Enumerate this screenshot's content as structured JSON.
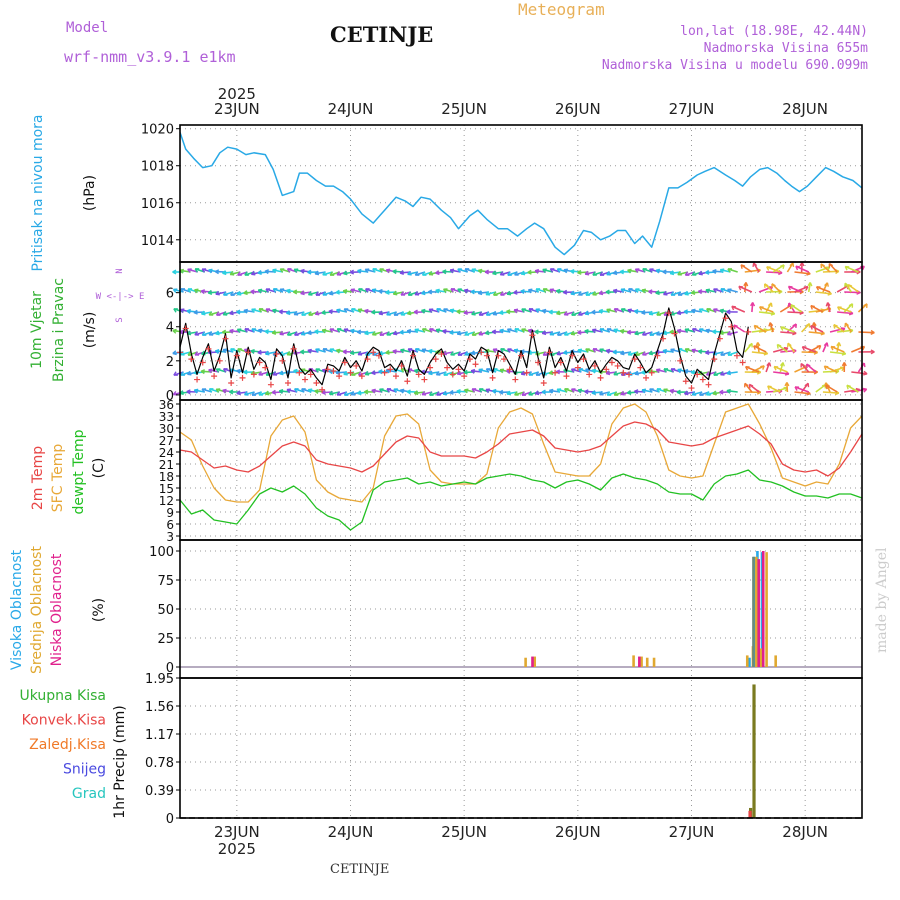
{
  "header": {
    "model_label": "Model",
    "model_name": "wrf-nmm_v3.9.1  e1km",
    "station": "CETINJE",
    "product": "Meteogram",
    "lonlat": "lon,lat (18.98E, 42.44N)",
    "altitude": "Nadmorska Visina 655m",
    "model_altitude": "Nadmorska Visina u modelu 690.099m"
  },
  "footer": {
    "station": "CETINJE",
    "watermark": "made by Angel"
  },
  "colors": {
    "pressure": "#29a9e6",
    "wind_label": "#33b033",
    "temp2m": "#e84646",
    "sfc": "#e8a838",
    "dewpt": "#22c022",
    "high_cloud": "#2aa9e8",
    "mid_cloud": "#e0a830",
    "low_cloud": "#e0208c",
    "precip_total": "#33b033",
    "precip_conv": "#e84646",
    "precip_frozen": "#f07a28",
    "snow": "#4a4ae0",
    "graupel": "#27c6bf",
    "header_purple": "#b060d8",
    "meteogram_orange": "#e8b058"
  },
  "time_axis": {
    "year": "2025",
    "days": [
      "23JUN",
      "24JUN",
      "25JUN",
      "26JUN",
      "27JUN",
      "28JUN"
    ],
    "start_day_fraction": 0.5
  },
  "panels": {
    "pressure": {
      "ylabel_left": "Pritisak na nivou mora",
      "ylabel_unit": "(hPa)",
      "ticks": [
        "1020",
        "1018",
        "1016",
        "1014"
      ]
    },
    "wind": {
      "ylabel_left1": "10m Vjetar",
      "ylabel_left2": "Brzina i Pravac",
      "ylabel_unit": "(m/s)",
      "compass": "W <-|-> E",
      "compass_n": "N",
      "compass_s": "S",
      "ticks": [
        "6",
        "4",
        "2",
        "0"
      ]
    },
    "temperature": {
      "ylabel_1": "2m Temp",
      "ylabel_2": "SFC Temp",
      "ylabel_3": "dewpt Temp",
      "ylabel_unit": "(C)",
      "ticks": [
        "36",
        "33",
        "30",
        "27",
        "24",
        "21",
        "18",
        "15",
        "12",
        "9",
        "6",
        "3"
      ]
    },
    "cloud": {
      "ylabel_1": "Visoka Oblacnost",
      "ylabel_2": "Srednja Oblacnost",
      "ylabel_3": "Niska Oblacnost",
      "ylabel_unit": "(%)",
      "ticks": [
        "100",
        "75",
        "50",
        "25",
        "0"
      ]
    },
    "precip": {
      "legend": [
        "Ukupna Kisa",
        "Konvek.Kisa",
        "Zaledj.Kisa",
        "Snijeg",
        "Grad"
      ],
      "ylabel": "1hr Precip (mm)",
      "ticks": [
        "1.95",
        "1.56",
        "1.17",
        "0.78",
        "0.39",
        "0"
      ]
    }
  },
  "chart_data": [
    {
      "type": "line",
      "name": "sea-level-pressure",
      "unit": "hPa",
      "ylim": [
        1012.8,
        1020.2
      ],
      "x_days": [
        22.5,
        22.55,
        22.62,
        22.7,
        22.78,
        22.85,
        22.92,
        23.0,
        23.08,
        23.15,
        23.25,
        23.32,
        23.4,
        23.5,
        23.55,
        23.62,
        23.7,
        23.78,
        23.85,
        23.93,
        24.0,
        24.1,
        24.2,
        24.3,
        24.4,
        24.48,
        24.55,
        24.62,
        24.7,
        24.8,
        24.88,
        24.95,
        25.05,
        25.12,
        25.2,
        25.3,
        25.38,
        25.47,
        25.55,
        25.62,
        25.7,
        25.8,
        25.88,
        25.97,
        26.05,
        26.12,
        26.2,
        26.28,
        26.35,
        26.42,
        26.5,
        26.57,
        26.65,
        26.72,
        26.8,
        26.88,
        26.96,
        27.05,
        27.12,
        27.2,
        27.3,
        27.38,
        27.45,
        27.52,
        27.6,
        27.67,
        27.75,
        27.82,
        27.88,
        27.95,
        28.02,
        28.1,
        28.18,
        28.25,
        28.33,
        28.42,
        28.5
      ],
      "values": [
        1019.8,
        1018.9,
        1018.4,
        1017.9,
        1018.0,
        1018.7,
        1019.0,
        1018.9,
        1018.6,
        1018.7,
        1018.6,
        1017.8,
        1016.4,
        1016.6,
        1017.6,
        1017.6,
        1017.2,
        1016.9,
        1016.9,
        1016.6,
        1016.2,
        1015.4,
        1014.9,
        1015.6,
        1016.3,
        1016.1,
        1015.8,
        1016.3,
        1016.2,
        1015.6,
        1015.2,
        1014.6,
        1015.3,
        1015.6,
        1015.1,
        1014.6,
        1014.6,
        1014.2,
        1014.6,
        1014.9,
        1014.6,
        1013.6,
        1013.2,
        1013.7,
        1014.5,
        1014.4,
        1014.0,
        1014.2,
        1014.5,
        1014.5,
        1013.8,
        1014.2,
        1013.6,
        1015.0,
        1016.8,
        1016.8,
        1017.1,
        1017.5,
        1017.7,
        1017.9,
        1017.5,
        1017.2,
        1016.9,
        1017.4,
        1017.8,
        1017.9,
        1017.6,
        1017.2,
        1016.9,
        1016.6,
        1016.9,
        1017.4,
        1017.9,
        1017.7,
        1017.4,
        1017.2,
        1016.8
      ]
    },
    {
      "type": "line",
      "name": "wind-speed",
      "unit": "m/s",
      "ylim": [
        -0.3,
        7.8
      ],
      "x_days": [
        22.5,
        22.55,
        22.6,
        22.65,
        22.7,
        22.75,
        22.8,
        22.85,
        22.9,
        22.95,
        23.0,
        23.05,
        23.1,
        23.15,
        23.2,
        23.25,
        23.3,
        23.35,
        23.4,
        23.45,
        23.5,
        23.55,
        23.6,
        23.65,
        23.7,
        23.75,
        23.8,
        23.85,
        23.9,
        23.95,
        24.0,
        24.05,
        24.1,
        24.15,
        24.2,
        24.25,
        24.3,
        24.35,
        24.4,
        24.45,
        24.5,
        24.55,
        24.6,
        24.65,
        24.7,
        24.75,
        24.8,
        24.85,
        24.9,
        24.95,
        25.0,
        25.05,
        25.1,
        25.15,
        25.2,
        25.25,
        25.3,
        25.35,
        25.4,
        25.45,
        25.5,
        25.55,
        25.6,
        25.65,
        25.7,
        25.75,
        25.8,
        25.85,
        25.9,
        25.95,
        26.0,
        26.05,
        26.1,
        26.15,
        26.2,
        26.25,
        26.3,
        26.35,
        26.4,
        26.45,
        26.5,
        26.55,
        26.6,
        26.65,
        26.7,
        26.75,
        26.8,
        26.85,
        26.9,
        26.95,
        27.0,
        27.05,
        27.1,
        27.15,
        27.2,
        27.25,
        27.3,
        27.35,
        27.4,
        27.45,
        27.5
      ],
      "values": [
        2.8,
        4.2,
        2.4,
        1.2,
        2.2,
        3.0,
        1.4,
        2.3,
        3.6,
        1.0,
        2.6,
        1.3,
        2.8,
        1.5,
        2.2,
        1.9,
        0.9,
        2.7,
        2.3,
        1.0,
        3.0,
        1.6,
        1.2,
        1.5,
        1.0,
        0.6,
        1.8,
        1.7,
        1.4,
        2.2,
        1.6,
        2.0,
        1.4,
        2.4,
        2.8,
        2.6,
        1.6,
        1.8,
        1.4,
        2.0,
        1.1,
        2.6,
        1.5,
        1.2,
        1.9,
        2.4,
        2.7,
        1.9,
        1.5,
        1.8,
        1.4,
        2.4,
        2.1,
        2.8,
        2.6,
        1.3,
        2.6,
        2.4,
        1.8,
        1.2,
        2.6,
        1.6,
        3.8,
        2.2,
        1.0,
        2.8,
        1.6,
        2.2,
        1.4,
        2.6,
        1.9,
        2.4,
        1.5,
        2.0,
        1.3,
        1.8,
        2.2,
        2.0,
        1.6,
        1.5,
        2.4,
        1.9,
        1.3,
        1.6,
        2.6,
        3.6,
        5.1,
        3.9,
        2.3,
        1.1,
        0.7,
        1.5,
        1.2,
        0.9,
        2.4,
        3.6,
        4.8,
        4.3,
        2.6,
        2.2,
        4.0
      ]
    },
    {
      "type": "line",
      "name": "2m-temperature",
      "unit": "C",
      "ylim": [
        2,
        37
      ],
      "x_days": [
        22.5,
        22.6,
        22.7,
        22.8,
        22.9,
        23.0,
        23.1,
        23.2,
        23.3,
        23.4,
        23.5,
        23.6,
        23.7,
        23.8,
        23.9,
        24.0,
        24.1,
        24.2,
        24.3,
        24.4,
        24.5,
        24.6,
        24.7,
        24.8,
        24.9,
        25.0,
        25.1,
        25.2,
        25.3,
        25.4,
        25.5,
        25.6,
        25.7,
        25.8,
        25.9,
        26.0,
        26.1,
        26.2,
        26.3,
        26.4,
        26.5,
        26.6,
        26.7,
        26.8,
        26.9,
        27.0,
        27.1,
        27.2,
        27.3,
        27.4,
        27.5,
        27.6,
        27.7,
        27.8,
        27.9,
        28.0,
        28.1,
        28.2,
        28.3,
        28.4,
        28.5
      ],
      "values": [
        24.5,
        24.0,
        22.0,
        20.0,
        20.5,
        19.5,
        19.0,
        20.5,
        23.0,
        25.5,
        26.5,
        25.5,
        22.0,
        21.0,
        20.5,
        20.0,
        19.0,
        20.5,
        23.5,
        26.5,
        28.0,
        27.5,
        24.0,
        23.0,
        23.0,
        23.0,
        22.5,
        24.0,
        26.0,
        28.5,
        29.0,
        29.5,
        28.0,
        25.0,
        24.5,
        24.0,
        24.5,
        25.5,
        28.0,
        30.5,
        31.5,
        31.0,
        29.5,
        26.5,
        26.0,
        25.5,
        26.0,
        27.5,
        28.5,
        29.5,
        30.5,
        28.5,
        26.0,
        21.0,
        19.5,
        19.0,
        19.5,
        18.0,
        20.0,
        24.0,
        28.5
      ]
    },
    {
      "type": "line",
      "name": "surface-temperature",
      "unit": "C",
      "ylim": [
        2,
        37
      ],
      "x_days": [
        22.5,
        22.6,
        22.7,
        22.8,
        22.9,
        23.0,
        23.1,
        23.2,
        23.3,
        23.4,
        23.5,
        23.6,
        23.7,
        23.8,
        23.9,
        24.0,
        24.1,
        24.2,
        24.3,
        24.4,
        24.5,
        24.6,
        24.7,
        24.8,
        24.9,
        25.0,
        25.1,
        25.2,
        25.3,
        25.4,
        25.5,
        25.6,
        25.7,
        25.8,
        25.9,
        26.0,
        26.1,
        26.2,
        26.3,
        26.4,
        26.5,
        26.6,
        26.7,
        26.8,
        26.9,
        27.0,
        27.1,
        27.2,
        27.3,
        27.4,
        27.5,
        27.6,
        27.7,
        27.8,
        27.9,
        28.0,
        28.1,
        28.2,
        28.3,
        28.4,
        28.5
      ],
      "values": [
        29.0,
        27.0,
        20.5,
        15.0,
        12.0,
        11.5,
        11.5,
        14.5,
        28.0,
        32.0,
        33.0,
        29.0,
        17.0,
        14.0,
        12.5,
        12.0,
        11.5,
        15.0,
        28.0,
        33.0,
        33.5,
        31.0,
        19.5,
        16.5,
        16.0,
        16.0,
        16.0,
        18.5,
        30.0,
        34.0,
        35.0,
        33.5,
        26.0,
        19.0,
        18.5,
        18.0,
        18.0,
        21.0,
        31.0,
        35.0,
        36.0,
        34.0,
        28.0,
        19.5,
        18.0,
        17.5,
        18.0,
        26.0,
        34.0,
        35.0,
        36.0,
        31.0,
        25.0,
        17.5,
        16.5,
        15.5,
        16.5,
        16.0,
        21.0,
        30.0,
        33.0
      ]
    },
    {
      "type": "line",
      "name": "dewpoint",
      "unit": "C",
      "ylim": [
        2,
        37
      ],
      "x_days": [
        22.5,
        22.6,
        22.7,
        22.8,
        22.9,
        23.0,
        23.1,
        23.2,
        23.3,
        23.4,
        23.5,
        23.6,
        23.7,
        23.8,
        23.9,
        24.0,
        24.1,
        24.2,
        24.3,
        24.4,
        24.5,
        24.6,
        24.7,
        24.8,
        24.9,
        25.0,
        25.1,
        25.2,
        25.3,
        25.4,
        25.5,
        25.6,
        25.7,
        25.8,
        25.9,
        26.0,
        26.1,
        26.2,
        26.3,
        26.4,
        26.5,
        26.6,
        26.7,
        26.8,
        26.9,
        27.0,
        27.1,
        27.2,
        27.3,
        27.4,
        27.5,
        27.6,
        27.7,
        27.8,
        27.9,
        28.0,
        28.1,
        28.2,
        28.3,
        28.4,
        28.5
      ],
      "values": [
        12.0,
        8.5,
        9.5,
        7.0,
        6.5,
        6.0,
        9.5,
        13.5,
        15.0,
        14.0,
        15.5,
        13.5,
        10.0,
        8.0,
        7.0,
        4.5,
        6.5,
        14.5,
        16.5,
        17.0,
        17.5,
        16.0,
        16.5,
        15.5,
        16.0,
        16.5,
        16.0,
        17.5,
        18.0,
        18.5,
        18.0,
        17.0,
        16.5,
        15.0,
        16.5,
        17.0,
        16.0,
        14.5,
        17.5,
        18.5,
        17.5,
        17.0,
        16.0,
        14.0,
        13.5,
        13.5,
        12.0,
        16.0,
        18.0,
        18.5,
        19.5,
        17.0,
        16.5,
        15.5,
        14.0,
        13.0,
        13.0,
        12.5,
        13.5,
        13.5,
        12.5
      ]
    },
    {
      "type": "bar",
      "name": "cloud-cover",
      "unit": "%",
      "ylim": [
        0,
        100
      ],
      "series": [
        {
          "name": "Visoka Oblacnost",
          "x_days": [
            27.51,
            27.55,
            27.58,
            27.62
          ],
          "values": [
            8,
            95,
            100,
            99
          ]
        },
        {
          "name": "Srednja Oblacnost",
          "x_days": [
            25.53,
            25.61,
            26.48,
            26.55,
            26.6,
            26.66,
            27.48,
            27.53,
            27.56,
            27.6,
            27.65,
            27.73
          ],
          "values": [
            8,
            9,
            10,
            9,
            8,
            8,
            10,
            18,
            95,
            16,
            99,
            10
          ]
        },
        {
          "name": "Niska Oblacnost",
          "x_days": [
            25.58,
            26.52,
            27.57,
            27.61
          ],
          "values": [
            9,
            9,
            93,
            100
          ]
        }
      ]
    },
    {
      "type": "bar",
      "name": "precipitation-1hr",
      "unit": "mm",
      "ylim": [
        0,
        1.95
      ],
      "series": [
        {
          "name": "Ukupna Kisa",
          "x_days": [
            27.52,
            27.55
          ],
          "values": [
            0.14,
            1.86
          ]
        },
        {
          "name": "Konvek.Kisa",
          "x_days": [
            27.515
          ],
          "values": [
            0.1
          ]
        }
      ]
    }
  ]
}
